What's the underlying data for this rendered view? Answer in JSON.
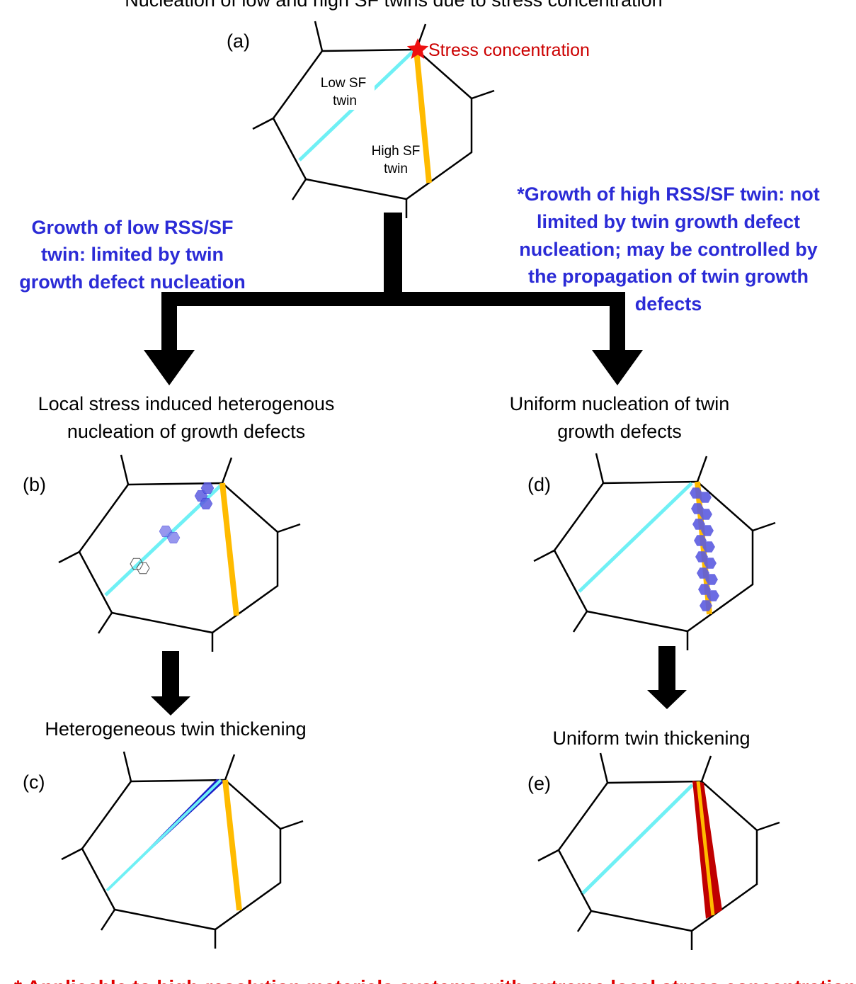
{
  "title": "Nucleation of low and high SF  twins due to stress concentration",
  "panels": {
    "a": {
      "letter": "(a)",
      "low_twin_line1": "Low SF",
      "low_twin_line2": "twin",
      "high_twin_line1": "High SF",
      "high_twin_line2": "twin",
      "stress_label": "Stress concentration"
    },
    "b": {
      "letter": "(b)"
    },
    "c": {
      "letter": "(c)"
    },
    "d": {
      "letter": "(d)"
    },
    "e": {
      "letter": "(e)"
    }
  },
  "left_branch": {
    "annotation": [
      "Growth of low RSS/SF",
      "twin: limited by twin",
      "growth defect nucleation"
    ],
    "step1": [
      "Local stress induced heterogenous",
      "nucleation of growth defects"
    ],
    "step2": "Heterogeneous twin thickening"
  },
  "right_branch": {
    "annotation": [
      "*Growth of high RSS/SF twin: not",
      "limited by twin growth defect",
      "nucleation; may be controlled by",
      "the propagation of twin growth",
      "defects"
    ],
    "step1": [
      "Uniform nucleation of twin",
      "growth defects"
    ],
    "step2": "Uniform twin thickening"
  },
  "footer": "* Applicable to high-resolution materials systems with extreme local stress concentration",
  "colors": {
    "low_sf_twin": "#6ff0f5",
    "high_sf_twin": "#ffbb00",
    "growth_defect": "#5c5ce0",
    "thickened_low_twin": "#1c1cc8",
    "thickened_high_twin": "#c00000",
    "stress_star": "#ee1111",
    "annotation_text": "#2b2bd6",
    "footer_text": "#e00000"
  },
  "icons": {
    "stress_marker": "star-icon",
    "flow": "arrow-down-icon"
  }
}
